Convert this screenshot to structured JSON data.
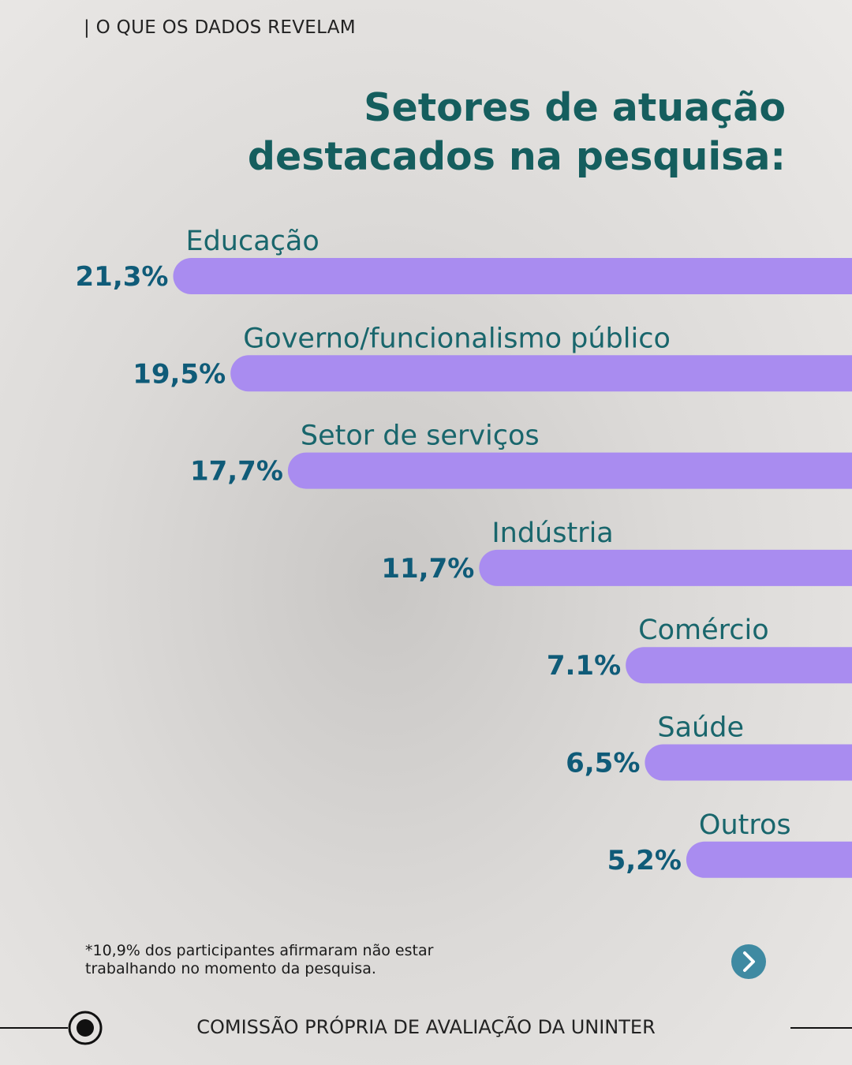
{
  "header": "| O QUE OS DADOS REVELAM",
  "chart_data": {
    "type": "bar",
    "orientation": "horizontal",
    "title": "Setores de atuação destacados na pesquisa:",
    "categories": [
      "Educação",
      "Governo/funcionalismo público",
      "Setor de serviços",
      "Indústria",
      "Comércio",
      "Saúde",
      "Outros"
    ],
    "values": [
      21.3,
      19.5,
      17.7,
      11.7,
      7.1,
      6.5,
      5.2
    ],
    "value_labels": [
      "21,3%",
      "19,5%",
      "17,7%",
      "11,7%",
      "7.1%",
      "6,5%",
      "5,2%"
    ],
    "color": "#a98cf0",
    "note": "*10,9% dos participantes afirmaram não estar trabalhando no momento da pesquisa."
  },
  "footer": "COMISSÃO PRÓPRIA DE AVALIAÇÃO DA UNINTER"
}
